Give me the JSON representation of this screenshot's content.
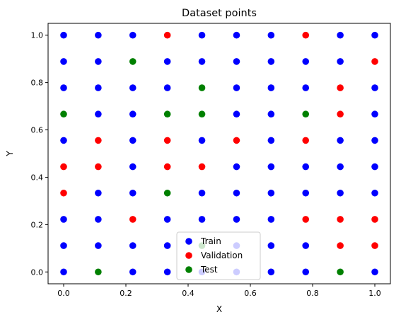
{
  "chart_data": {
    "type": "scatter",
    "title": "Dataset points",
    "xlabel": "X",
    "ylabel": "Y",
    "xlim": [
      -0.05,
      1.05
    ],
    "ylim": [
      -0.05,
      1.05
    ],
    "xticks": [
      0.0,
      0.2,
      0.4,
      0.6,
      0.8,
      1.0
    ],
    "xtick_labels": [
      "0.0",
      "0.2",
      "0.4",
      "0.6",
      "0.8",
      "1.0"
    ],
    "yticks": [
      0.0,
      0.2,
      0.4,
      0.6,
      0.8,
      1.0
    ],
    "ytick_labels": [
      "0.0",
      "0.2",
      "0.4",
      "0.6",
      "0.8",
      "1.0"
    ],
    "grid": false,
    "legend_position": "lower center",
    "grid_values": [
      0,
      0.1111,
      0.2222,
      0.3333,
      0.4444,
      0.5556,
      0.6667,
      0.7778,
      0.8889,
      1.0
    ],
    "series": [
      {
        "name": "Train",
        "color": "#0000ff",
        "points": [
          [
            0,
            0
          ],
          [
            0.2222,
            0
          ],
          [
            0.3333,
            0
          ],
          [
            0.4444,
            0
          ],
          [
            0.5556,
            0
          ],
          [
            0.6667,
            0
          ],
          [
            0.7778,
            0
          ],
          [
            1.0,
            0
          ],
          [
            0,
            0.1111
          ],
          [
            0.1111,
            0.1111
          ],
          [
            0.2222,
            0.1111
          ],
          [
            0.3333,
            0.1111
          ],
          [
            0.5556,
            0.1111
          ],
          [
            0.6667,
            0.1111
          ],
          [
            0.7778,
            0.1111
          ],
          [
            0,
            0.2222
          ],
          [
            0.1111,
            0.2222
          ],
          [
            0.3333,
            0.2222
          ],
          [
            0.4444,
            0.2222
          ],
          [
            0.5556,
            0.2222
          ],
          [
            0.6667,
            0.2222
          ],
          [
            0.1111,
            0.3333
          ],
          [
            0.2222,
            0.3333
          ],
          [
            0.4444,
            0.3333
          ],
          [
            0.5556,
            0.3333
          ],
          [
            0.6667,
            0.3333
          ],
          [
            0.7778,
            0.3333
          ],
          [
            0.8889,
            0.3333
          ],
          [
            1.0,
            0.3333
          ],
          [
            0.2222,
            0.4444
          ],
          [
            0.5556,
            0.4444
          ],
          [
            0.6667,
            0.4444
          ],
          [
            0.7778,
            0.4444
          ],
          [
            0.8889,
            0.4444
          ],
          [
            1.0,
            0.4444
          ],
          [
            0,
            0.5556
          ],
          [
            0.2222,
            0.5556
          ],
          [
            0.4444,
            0.5556
          ],
          [
            0.6667,
            0.5556
          ],
          [
            0.8889,
            0.5556
          ],
          [
            1.0,
            0.5556
          ],
          [
            0.1111,
            0.6667
          ],
          [
            0.2222,
            0.6667
          ],
          [
            0.5556,
            0.6667
          ],
          [
            0.6667,
            0.6667
          ],
          [
            1.0,
            0.6667
          ],
          [
            0,
            0.7778
          ],
          [
            0.1111,
            0.7778
          ],
          [
            0.2222,
            0.7778
          ],
          [
            0.3333,
            0.7778
          ],
          [
            0.5556,
            0.7778
          ],
          [
            0.6667,
            0.7778
          ],
          [
            0.7778,
            0.7778
          ],
          [
            1.0,
            0.7778
          ],
          [
            0,
            0.8889
          ],
          [
            0.1111,
            0.8889
          ],
          [
            0.3333,
            0.8889
          ],
          [
            0.4444,
            0.8889
          ],
          [
            0.5556,
            0.8889
          ],
          [
            0.6667,
            0.8889
          ],
          [
            0.7778,
            0.8889
          ],
          [
            0.8889,
            0.8889
          ],
          [
            0,
            1.0
          ],
          [
            0.1111,
            1.0
          ],
          [
            0.2222,
            1.0
          ],
          [
            0.4444,
            1.0
          ],
          [
            0.5556,
            1.0
          ],
          [
            0.6667,
            1.0
          ],
          [
            0.8889,
            1.0
          ],
          [
            1.0,
            1.0
          ]
        ]
      },
      {
        "name": "Validation",
        "color": "#ff0000",
        "points": [
          [
            0.3333,
            1.0
          ],
          [
            0.7778,
            1.0
          ],
          [
            1.0,
            0.8889
          ],
          [
            0.8889,
            0.7778
          ],
          [
            0.8889,
            0.6667
          ],
          [
            0.1111,
            0.5556
          ],
          [
            0.3333,
            0.5556
          ],
          [
            0.5556,
            0.5556
          ],
          [
            0.7778,
            0.5556
          ],
          [
            0,
            0.4444
          ],
          [
            0.1111,
            0.4444
          ],
          [
            0.3333,
            0.4444
          ],
          [
            0.4444,
            0.4444
          ],
          [
            0,
            0.3333
          ],
          [
            0.2222,
            0.2222
          ],
          [
            0.7778,
            0.2222
          ],
          [
            0.8889,
            0.2222
          ],
          [
            1.0,
            0.2222
          ],
          [
            0.8889,
            0.1111
          ],
          [
            1.0,
            0.1111
          ]
        ]
      },
      {
        "name": "Test",
        "color": "#008000",
        "points": [
          [
            0.2222,
            0.8889
          ],
          [
            0.4444,
            0.7778
          ],
          [
            0,
            0.6667
          ],
          [
            0.3333,
            0.6667
          ],
          [
            0.4444,
            0.6667
          ],
          [
            0.7778,
            0.6667
          ],
          [
            0.3333,
            0.3333
          ],
          [
            0.4444,
            0.1111
          ],
          [
            0.1111,
            0
          ],
          [
            0.8889,
            0
          ]
        ]
      }
    ]
  }
}
